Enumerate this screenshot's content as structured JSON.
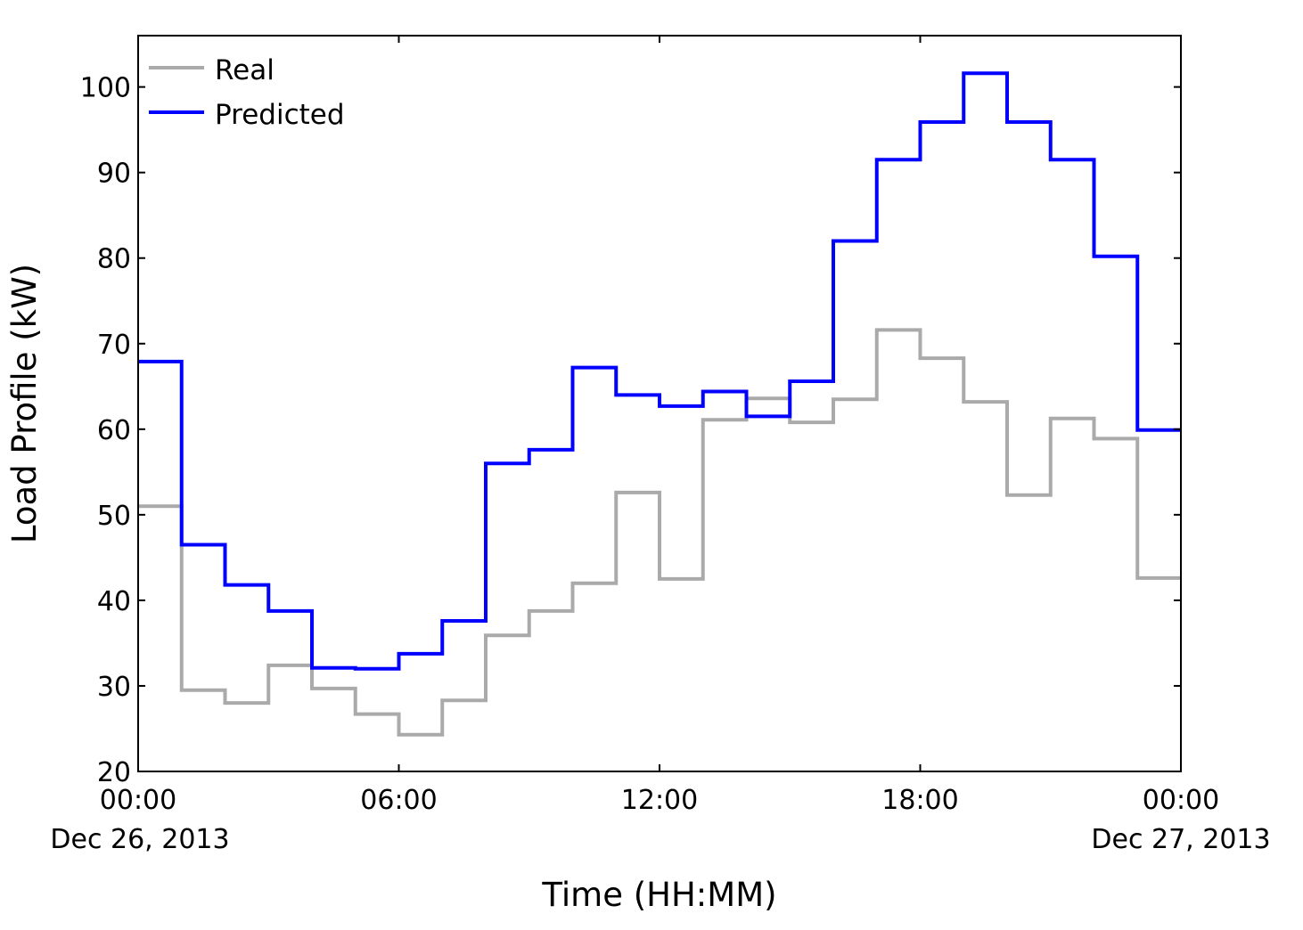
{
  "chart_data": {
    "type": "line",
    "step": "post",
    "title": "",
    "xlabel": "Time (HH:MM)",
    "ylabel": "Load Profile (kW)",
    "xlim_hours": [
      0,
      24
    ],
    "ylim": [
      20,
      106
    ],
    "grid": false,
    "legend_position": "top-left",
    "x_hours": [
      0,
      1,
      2,
      3,
      4,
      5,
      6,
      7,
      8,
      9,
      10,
      11,
      12,
      13,
      14,
      15,
      16,
      17,
      18,
      19,
      20,
      21,
      22,
      23
    ],
    "x_ticks": [
      {
        "hour": 0,
        "label": "00:00",
        "sublabel": "Dec 26, 2013"
      },
      {
        "hour": 6,
        "label": "06:00",
        "sublabel": ""
      },
      {
        "hour": 12,
        "label": "12:00",
        "sublabel": ""
      },
      {
        "hour": 18,
        "label": "18:00",
        "sublabel": ""
      },
      {
        "hour": 24,
        "label": "00:00",
        "sublabel": "Dec 27, 2013"
      }
    ],
    "y_ticks": [
      20,
      30,
      40,
      50,
      60,
      70,
      80,
      90,
      100
    ],
    "series": [
      {
        "name": "Real",
        "color": "#aaaaaa",
        "values": [
          51.0,
          29.5,
          28.0,
          32.4,
          29.7,
          26.7,
          24.3,
          28.3,
          35.9,
          38.75,
          42.0,
          52.6,
          42.5,
          61.1,
          63.6,
          60.8,
          63.5,
          71.6,
          68.3,
          63.2,
          52.3,
          61.25,
          58.9,
          42.6
        ]
      },
      {
        "name": "Predicted",
        "color": "#0000ff",
        "values": [
          67.9,
          46.5,
          41.8,
          38.75,
          32.1,
          32.0,
          33.75,
          37.6,
          56.0,
          57.6,
          67.2,
          64.0,
          62.7,
          64.4,
          61.5,
          65.6,
          82.0,
          91.5,
          95.9,
          101.6,
          95.9,
          91.5,
          80.2,
          59.9
        ]
      }
    ]
  }
}
